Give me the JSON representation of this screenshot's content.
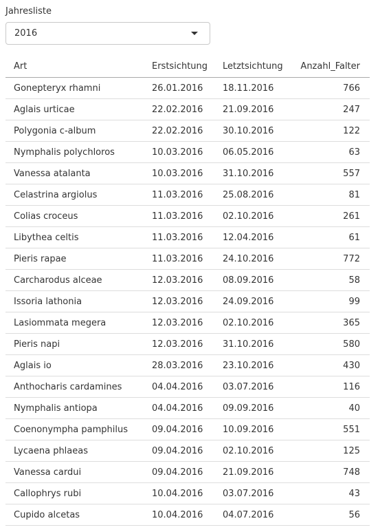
{
  "filter": {
    "label": "Jahresliste",
    "selected_year": "2016"
  },
  "table": {
    "headers": [
      "Art",
      "Erstsichtung",
      "Letztsichtung",
      "Anzahl_Falter"
    ],
    "rows": [
      [
        "Gonepteryx rhamni",
        "26.01.2016",
        "18.11.2016",
        "766"
      ],
      [
        "Aglais urticae",
        "22.02.2016",
        "21.09.2016",
        "247"
      ],
      [
        "Polygonia c-album",
        "22.02.2016",
        "30.10.2016",
        "122"
      ],
      [
        "Nymphalis polychloros",
        "10.03.2016",
        "06.05.2016",
        "63"
      ],
      [
        "Vanessa atalanta",
        "10.03.2016",
        "31.10.2016",
        "557"
      ],
      [
        "Celastrina argiolus",
        "11.03.2016",
        "25.08.2016",
        "81"
      ],
      [
        "Colias croceus",
        "11.03.2016",
        "02.10.2016",
        "261"
      ],
      [
        "Libythea celtis",
        "11.03.2016",
        "12.04.2016",
        "61"
      ],
      [
        "Pieris rapae",
        "11.03.2016",
        "24.10.2016",
        "772"
      ],
      [
        "Carcharodus alceae",
        "12.03.2016",
        "08.09.2016",
        "58"
      ],
      [
        "Issoria lathonia",
        "12.03.2016",
        "24.09.2016",
        "99"
      ],
      [
        "Lasiommata megera",
        "12.03.2016",
        "02.10.2016",
        "365"
      ],
      [
        "Pieris napi",
        "12.03.2016",
        "31.10.2016",
        "580"
      ],
      [
        "Aglais io",
        "28.03.2016",
        "23.10.2016",
        "430"
      ],
      [
        "Anthocharis cardamines",
        "04.04.2016",
        "03.07.2016",
        "116"
      ],
      [
        "Nymphalis antiopa",
        "04.04.2016",
        "09.09.2016",
        "40"
      ],
      [
        "Coenonympha pamphilus",
        "09.04.2016",
        "10.09.2016",
        "551"
      ],
      [
        "Lycaena phlaeas",
        "09.04.2016",
        "02.10.2016",
        "125"
      ],
      [
        "Vanessa cardui",
        "09.04.2016",
        "21.09.2016",
        "748"
      ],
      [
        "Callophrys rubi",
        "10.04.2016",
        "03.07.2016",
        "43"
      ],
      [
        "Cupido alcetas",
        "10.04.2016",
        "04.07.2016",
        "56"
      ]
    ]
  }
}
